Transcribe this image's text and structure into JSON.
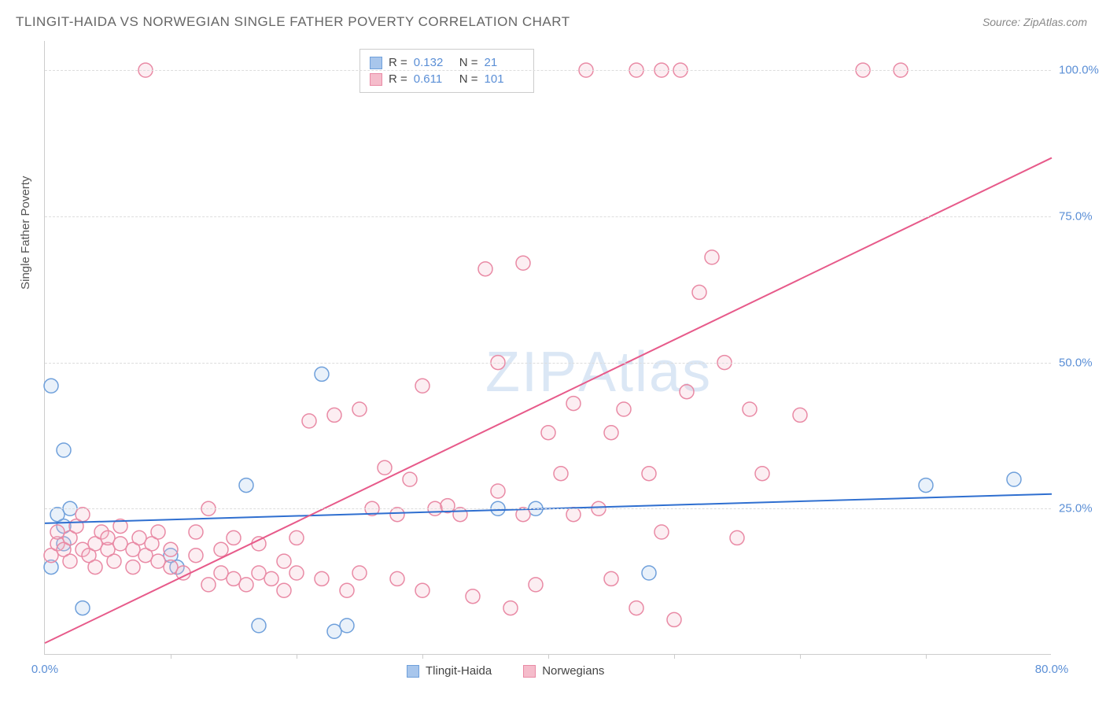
{
  "title": "TLINGIT-HAIDA VS NORWEGIAN SINGLE FATHER POVERTY CORRELATION CHART",
  "source": "Source: ZipAtlas.com",
  "watermark": "ZIPAtlas",
  "y_axis_label": "Single Father Poverty",
  "chart": {
    "type": "scatter-with-regression",
    "xlim": [
      0,
      80
    ],
    "ylim": [
      0,
      105
    ],
    "x_ticks": [
      {
        "value": 0,
        "label": "0.0%"
      },
      {
        "value": 80,
        "label": "80.0%"
      }
    ],
    "x_minor_marks": [
      10,
      20,
      30,
      40,
      50,
      60,
      70
    ],
    "y_ticks": [
      {
        "value": 25,
        "label": "25.0%"
      },
      {
        "value": 50,
        "label": "50.0%"
      },
      {
        "value": 75,
        "label": "75.0%"
      },
      {
        "value": 100,
        "label": "100.0%"
      }
    ],
    "background_color": "#ffffff",
    "grid_color": "#dddddd",
    "axis_color": "#cccccc",
    "tick_label_color": "#5b8fd6",
    "marker_radius": 9,
    "marker_stroke_width": 1.5,
    "marker_fill_opacity": 0.25,
    "line_width": 2,
    "series": [
      {
        "name": "Tlingit-Haida",
        "color_fill": "#a8c6ec",
        "color_stroke": "#6fa0db",
        "line_color": "#2f6fd0",
        "r": 0.132,
        "n": 21,
        "regression": {
          "x1": 0,
          "y1": 22.5,
          "x2": 80,
          "y2": 27.5
        },
        "points": [
          [
            0.5,
            46
          ],
          [
            0.5,
            15
          ],
          [
            1,
            24
          ],
          [
            1.5,
            35
          ],
          [
            1.5,
            22
          ],
          [
            1.5,
            19
          ],
          [
            2,
            25
          ],
          [
            3,
            8
          ],
          [
            10,
            17
          ],
          [
            10.5,
            15
          ],
          [
            16,
            29
          ],
          [
            17,
            5
          ],
          [
            22,
            48
          ],
          [
            23,
            4
          ],
          [
            24,
            5
          ],
          [
            36,
            25
          ],
          [
            39,
            25
          ],
          [
            48,
            14
          ],
          [
            70,
            29
          ],
          [
            77,
            30
          ]
        ]
      },
      {
        "name": "Norwegians",
        "color_fill": "#f5bccb",
        "color_stroke": "#e98aa5",
        "line_color": "#e75a8a",
        "r": 0.611,
        "n": 101,
        "regression": {
          "x1": 0,
          "y1": 2,
          "x2": 80,
          "y2": 85
        },
        "points": [
          [
            0.5,
            17
          ],
          [
            1,
            19
          ],
          [
            1,
            21
          ],
          [
            1.5,
            18
          ],
          [
            2,
            16
          ],
          [
            2,
            20
          ],
          [
            2.5,
            22
          ],
          [
            3,
            18
          ],
          [
            3,
            24
          ],
          [
            3.5,
            17
          ],
          [
            4,
            19
          ],
          [
            4,
            15
          ],
          [
            4.5,
            21
          ],
          [
            5,
            18
          ],
          [
            5,
            20
          ],
          [
            5.5,
            16
          ],
          [
            6,
            19
          ],
          [
            6,
            22
          ],
          [
            7,
            18
          ],
          [
            7,
            15
          ],
          [
            7.5,
            20
          ],
          [
            8,
            17
          ],
          [
            8,
            100
          ],
          [
            8.5,
            19
          ],
          [
            9,
            16
          ],
          [
            9,
            21
          ],
          [
            10,
            18
          ],
          [
            10,
            15
          ],
          [
            11,
            14
          ],
          [
            12,
            21
          ],
          [
            12,
            17
          ],
          [
            13,
            25
          ],
          [
            13,
            12
          ],
          [
            14,
            18
          ],
          [
            14,
            14
          ],
          [
            15,
            20
          ],
          [
            15,
            13
          ],
          [
            16,
            12
          ],
          [
            17,
            19
          ],
          [
            17,
            14
          ],
          [
            18,
            13
          ],
          [
            19,
            16
          ],
          [
            19,
            11
          ],
          [
            20,
            14
          ],
          [
            20,
            20
          ],
          [
            21,
            40
          ],
          [
            22,
            13
          ],
          [
            23,
            41
          ],
          [
            24,
            11
          ],
          [
            25,
            14
          ],
          [
            25,
            42
          ],
          [
            26,
            25
          ],
          [
            27,
            32
          ],
          [
            28,
            13
          ],
          [
            28,
            24
          ],
          [
            29,
            30
          ],
          [
            30,
            46
          ],
          [
            30,
            11
          ],
          [
            31,
            25
          ],
          [
            32,
            25.5
          ],
          [
            33,
            24
          ],
          [
            34,
            10
          ],
          [
            35,
            66
          ],
          [
            36,
            50
          ],
          [
            36,
            28
          ],
          [
            37,
            8
          ],
          [
            37.5,
            100
          ],
          [
            38,
            24
          ],
          [
            38,
            67
          ],
          [
            39,
            12
          ],
          [
            40,
            38
          ],
          [
            41,
            31
          ],
          [
            42,
            24
          ],
          [
            42,
            43
          ],
          [
            43,
            100
          ],
          [
            44,
            25
          ],
          [
            45,
            38
          ],
          [
            45,
            13
          ],
          [
            46,
            42
          ],
          [
            47,
            8
          ],
          [
            48,
            31
          ],
          [
            49,
            21
          ],
          [
            49,
            100
          ],
          [
            50,
            6
          ],
          [
            50.5,
            100
          ],
          [
            51,
            45
          ],
          [
            52,
            62
          ],
          [
            53,
            68
          ],
          [
            54,
            50
          ],
          [
            55,
            20
          ],
          [
            56,
            42
          ],
          [
            57,
            31
          ],
          [
            60,
            41
          ],
          [
            65,
            100
          ],
          [
            68,
            100
          ],
          [
            47,
            100
          ]
        ]
      }
    ]
  },
  "legend_bottom": [
    {
      "label": "Tlingit-Haida",
      "fill": "#a8c6ec",
      "stroke": "#6fa0db"
    },
    {
      "label": "Norwegians",
      "fill": "#f5bccb",
      "stroke": "#e98aa5"
    }
  ]
}
